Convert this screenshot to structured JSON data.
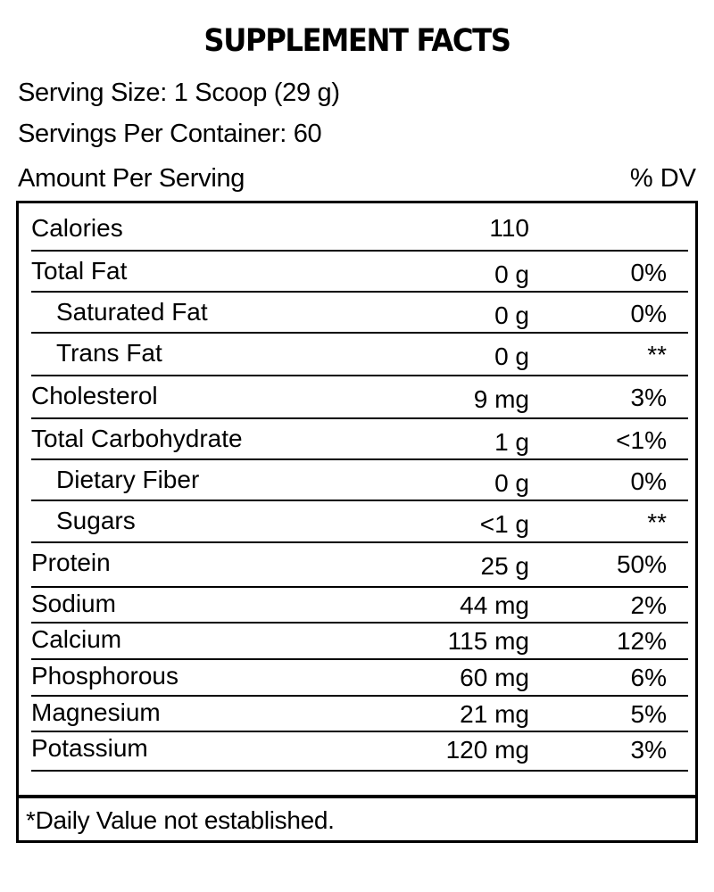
{
  "title": "SUPPLEMENT FACTS",
  "serving_size": "Serving Size: 1 Scoop (29 g)",
  "servings_per_container": "Servings Per Container: 60",
  "amount_per_serving_label": "Amount Per Serving",
  "dv_label": "% DV",
  "rows": [
    {
      "name": "Calories",
      "amount": "110",
      "dv": "",
      "indent": false
    },
    {
      "name": "Total Fat",
      "amount": "0 g",
      "dv": "0%",
      "indent": false
    },
    {
      "name": "Saturated Fat",
      "amount": "0 g",
      "dv": "0%",
      "indent": true
    },
    {
      "name": "Trans Fat",
      "amount": "0 g",
      "dv": "**",
      "indent": true
    },
    {
      "name": "Cholesterol",
      "amount": "9 mg",
      "dv": "3%",
      "indent": false
    },
    {
      "name": "Total Carbohydrate",
      "amount": "1 g",
      "dv": "<1%",
      "indent": false
    },
    {
      "name": "Dietary Fiber",
      "amount": "0 g",
      "dv": "0%",
      "indent": true
    },
    {
      "name": "Sugars",
      "amount": "<1 g",
      "dv": "**",
      "indent": true
    },
    {
      "name": "Protein",
      "amount": "25 g",
      "dv": "50%",
      "indent": false
    },
    {
      "name": "Sodium",
      "amount": "44 mg",
      "dv": "2%",
      "indent": false
    },
    {
      "name": "Calcium",
      "amount": "115 mg",
      "dv": "12%",
      "indent": false
    },
    {
      "name": "Phosphorous",
      "amount": "60 mg",
      "dv": "6%",
      "indent": false
    },
    {
      "name": "Magnesium",
      "amount": "21 mg",
      "dv": "5%",
      "indent": false
    },
    {
      "name": "Potassium",
      "amount": "120 mg",
      "dv": "3%",
      "indent": false
    }
  ],
  "footnote": "*Daily Value not established."
}
